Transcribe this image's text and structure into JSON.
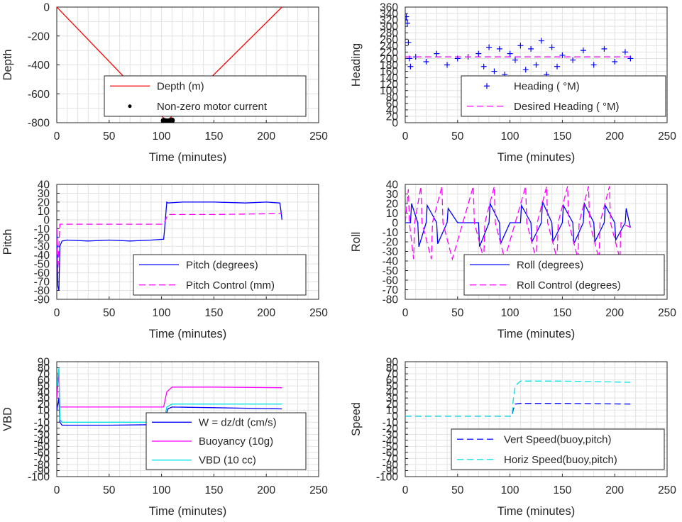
{
  "chart_data": [
    {
      "type": "line",
      "ylabel": "Depth",
      "xlabel": "Time (minutes)",
      "xlim": [
        0,
        250
      ],
      "ylim": [
        -800,
        0
      ],
      "xticks": [
        "0",
        "50",
        "100",
        "150",
        "200",
        "250"
      ],
      "yticks": [
        "-800",
        "-600",
        "-400",
        "-200",
        "0"
      ],
      "grid": true,
      "legend_position": "lower-right",
      "series": [
        {
          "name": "Depth (m)",
          "color": "#ff0000",
          "style": "solid",
          "x": [
            0,
            105,
            215
          ],
          "y": [
            0,
            -790,
            0
          ]
        },
        {
          "name": "Non-zero motor current",
          "color": "#000000",
          "style": "dots",
          "x": [
            102,
            104,
            106,
            108,
            110
          ],
          "y": [
            -786,
            -789,
            -790,
            -788,
            -784
          ]
        }
      ]
    },
    {
      "type": "line",
      "ylabel": "Heading",
      "xlabel": "Time (minutes)",
      "xlim": [
        0,
        250
      ],
      "ylim": [
        0,
        360
      ],
      "xticks": [
        "0",
        "50",
        "100",
        "150",
        "200",
        "250"
      ],
      "yticks": [
        "0",
        "20",
        "40",
        "60",
        "80",
        "100",
        "120",
        "140",
        "160",
        "180",
        "200",
        "220",
        "240",
        "260",
        "280",
        "300",
        "320",
        "340",
        "360"
      ],
      "grid": true,
      "legend_position": "lower-right",
      "series": [
        {
          "name": "Heading ( °M)",
          "color": "#0000ff",
          "style": "plus",
          "x": [
            0,
            1,
            2,
            3,
            4,
            5,
            10,
            20,
            30,
            40,
            50,
            60,
            70,
            75,
            80,
            85,
            90,
            95,
            100,
            105,
            110,
            115,
            120,
            125,
            130,
            135,
            140,
            145,
            150,
            160,
            170,
            180,
            190,
            200,
            210,
            215
          ],
          "y": [
            320,
            330,
            310,
            250,
            200,
            175,
            205,
            190,
            215,
            180,
            200,
            205,
            215,
            175,
            235,
            160,
            230,
            150,
            215,
            195,
            240,
            165,
            230,
            180,
            255,
            150,
            235,
            175,
            210,
            195,
            225,
            180,
            230,
            190,
            220,
            200
          ]
        },
        {
          "name": "Desired Heading ( °M)",
          "color": "#ff00ff",
          "style": "dash",
          "x": [
            0,
            215
          ],
          "y": [
            205,
            205
          ]
        }
      ]
    },
    {
      "type": "line",
      "ylabel": "Pitch",
      "xlabel": "Time (minutes)",
      "xlim": [
        0,
        250
      ],
      "ylim": [
        -90,
        40
      ],
      "xticks": [
        "0",
        "50",
        "100",
        "150",
        "200",
        "250"
      ],
      "yticks": [
        "-90",
        "-80",
        "-70",
        "-60",
        "-50",
        "-40",
        "-30",
        "-20",
        "-10",
        "0",
        "10",
        "20",
        "30",
        "40"
      ],
      "grid": true,
      "legend_position": "lower-right",
      "series": [
        {
          "name": "Pitch (degrees)",
          "color": "#0000ff",
          "style": "solid",
          "x": [
            0,
            1,
            2,
            3,
            5,
            10,
            30,
            50,
            70,
            90,
            102,
            103,
            104,
            105,
            106,
            120,
            150,
            180,
            200,
            213,
            214,
            215
          ],
          "y": [
            -10,
            -75,
            -80,
            -30,
            -24,
            -23,
            -24,
            -23,
            -24,
            -23,
            -22,
            -10,
            5,
            20,
            19,
            20,
            20,
            19,
            20,
            19,
            10,
            0
          ]
        },
        {
          "name": "Pitch Control (mm)",
          "color": "#ff00ff",
          "style": "dash",
          "x": [
            0,
            1,
            2,
            3,
            102,
            104,
            106,
            150,
            215
          ],
          "y": [
            -10,
            -60,
            -30,
            -5,
            -5,
            0,
            6,
            6,
            7
          ]
        }
      ]
    },
    {
      "type": "line",
      "ylabel": "Roll",
      "xlabel": "Time (minutes)",
      "xlim": [
        0,
        250
      ],
      "ylim": [
        -80,
        40
      ],
      "xticks": [
        "0",
        "50",
        "100",
        "150",
        "200",
        "250"
      ],
      "yticks": [
        "-80",
        "-70",
        "-60",
        "-50",
        "-40",
        "-30",
        "-20",
        "-10",
        "0",
        "10",
        "20",
        "30",
        "40"
      ],
      "grid": true,
      "legend_position": "lower-right",
      "series": [
        {
          "name": "Roll (degrees)",
          "color": "#0000ff",
          "style": "solid",
          "x": [
            0,
            5,
            6,
            12,
            13,
            20,
            21,
            30,
            31,
            40,
            41,
            50,
            60,
            70,
            71,
            80,
            81,
            90,
            91,
            100,
            110,
            111,
            120,
            121,
            130,
            131,
            140,
            141,
            150,
            151,
            160,
            161,
            170,
            171,
            180,
            181,
            190,
            191,
            200,
            201,
            210,
            211,
            215
          ],
          "y": [
            0,
            0,
            20,
            0,
            -25,
            0,
            18,
            0,
            -22,
            0,
            15,
            0,
            0,
            0,
            -25,
            0,
            20,
            0,
            -22,
            0,
            0,
            18,
            0,
            -20,
            0,
            22,
            0,
            -20,
            0,
            18,
            0,
            -22,
            0,
            20,
            0,
            -20,
            0,
            18,
            0,
            -18,
            0,
            15,
            -5
          ]
        },
        {
          "name": "Roll Control (degrees)",
          "color": "#ff00ff",
          "style": "dash",
          "x": [
            0,
            3,
            4,
            8,
            9,
            15,
            16,
            25,
            26,
            35,
            36,
            45,
            55,
            65,
            66,
            75,
            76,
            85,
            86,
            95,
            105,
            115,
            116,
            125,
            126,
            135,
            136,
            145,
            146,
            155,
            156,
            165,
            166,
            175,
            176,
            185,
            186,
            195,
            196,
            205,
            206,
            215
          ],
          "y": [
            0,
            35,
            0,
            -38,
            0,
            38,
            0,
            -38,
            0,
            38,
            0,
            -38,
            0,
            38,
            0,
            -38,
            0,
            38,
            0,
            -38,
            0,
            38,
            0,
            -38,
            0,
            38,
            0,
            -38,
            0,
            38,
            0,
            -38,
            0,
            38,
            0,
            -38,
            0,
            38,
            0,
            -38,
            0,
            -5
          ]
        }
      ]
    },
    {
      "type": "line",
      "ylabel": "VBD",
      "xlabel": "Time (minutes)",
      "xlim": [
        0,
        250
      ],
      "ylim": [
        -100,
        90
      ],
      "xticks": [
        "0",
        "50",
        "100",
        "150",
        "200",
        "250"
      ],
      "yticks": [
        "-100",
        "-90",
        "-80",
        "-70",
        "-60",
        "-50",
        "-40",
        "-30",
        "-20",
        "-10",
        "0",
        "10",
        "20",
        "30",
        "40",
        "50",
        "60",
        "70",
        "80",
        "90"
      ],
      "grid": true,
      "legend_position": "lower-right",
      "series": [
        {
          "name": "W = dz/dt (cm/s)",
          "color": "#0000ff",
          "style": "solid",
          "x": [
            0,
            2,
            3,
            5,
            50,
            100,
            102,
            104,
            106,
            110,
            150,
            215
          ],
          "y": [
            10,
            30,
            -10,
            -15,
            -15,
            -14,
            -13,
            0,
            12,
            15,
            14,
            12
          ]
        },
        {
          "name": "Buoyancy (10g)",
          "color": "#ff00ff",
          "style": "solid",
          "x": [
            0,
            2,
            3,
            5,
            50,
            100,
            102,
            105,
            110,
            150,
            215
          ],
          "y": [
            30,
            75,
            15,
            15,
            15,
            15,
            15,
            40,
            48,
            48,
            47
          ]
        },
        {
          "name": "VBD (10 cc)",
          "color": "#00e0e0",
          "style": "solid",
          "x": [
            0,
            2,
            3,
            5,
            50,
            100,
            102,
            105,
            110,
            150,
            215
          ],
          "y": [
            50,
            80,
            -5,
            -10,
            -10,
            -10,
            -10,
            15,
            20,
            20,
            20
          ]
        }
      ]
    },
    {
      "type": "line",
      "ylabel": "Speed",
      "xlabel": "Time (minutes)",
      "xlim": [
        0,
        250
      ],
      "ylim": [
        -100,
        90
      ],
      "xticks": [
        "0",
        "50",
        "100",
        "150",
        "200",
        "250"
      ],
      "yticks": [
        "-100",
        "-90",
        "-80",
        "-70",
        "-60",
        "-50",
        "-40",
        "-30",
        "-20",
        "-10",
        "0",
        "10",
        "20",
        "30",
        "40",
        "50",
        "60",
        "70",
        "80",
        "90"
      ],
      "grid": true,
      "legend_position": "lower-right",
      "series": [
        {
          "name": "Vert Speed(buoy,pitch)",
          "color": "#0000ff",
          "style": "dash",
          "x": [
            0,
            102,
            103,
            105,
            110,
            150,
            215
          ],
          "y": [
            0,
            0,
            10,
            20,
            21,
            21,
            20
          ]
        },
        {
          "name": "Horiz Speed(buoy,pitch)",
          "color": "#00e0e0",
          "style": "dash",
          "x": [
            0,
            102,
            103,
            105,
            110,
            150,
            215
          ],
          "y": [
            0,
            0,
            25,
            50,
            58,
            58,
            56
          ]
        }
      ]
    }
  ]
}
